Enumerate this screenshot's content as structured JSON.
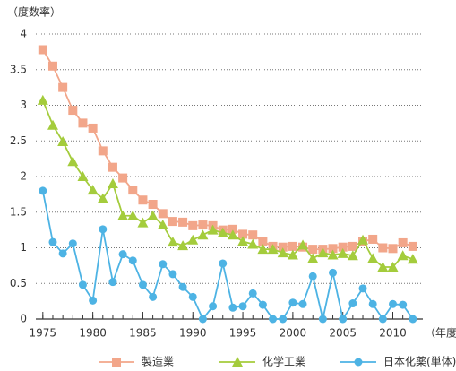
{
  "chart_data": {
    "type": "line",
    "y_label": "（度数率）",
    "x_label": "（年度）",
    "x": [
      1975,
      1976,
      1977,
      1978,
      1979,
      1980,
      1981,
      1982,
      1983,
      1984,
      1985,
      1986,
      1987,
      1988,
      1989,
      1990,
      1991,
      1992,
      1993,
      1994,
      1995,
      1996,
      1997,
      1998,
      1999,
      2000,
      2001,
      2002,
      2003,
      2004,
      2005,
      2006,
      2007,
      2008,
      2009,
      2010,
      2011,
      2012
    ],
    "xlim": [
      1974.3,
      2013
    ],
    "xticks": [
      1975,
      1980,
      1985,
      1990,
      1995,
      2000,
      2005,
      2010
    ],
    "ylim": [
      0,
      4
    ],
    "yticks": [
      0,
      0.5,
      1,
      1.5,
      2,
      2.5,
      3,
      3.5,
      4
    ],
    "grid": true,
    "series": [
      {
        "name": "製造業",
        "color": "#f2a68a",
        "marker": "square",
        "values": [
          3.78,
          3.55,
          3.25,
          2.93,
          2.75,
          2.68,
          2.36,
          2.13,
          1.98,
          1.81,
          1.67,
          1.61,
          1.48,
          1.37,
          1.36,
          1.31,
          1.32,
          1.31,
          1.25,
          1.26,
          1.19,
          1.18,
          1.09,
          1.02,
          1.01,
          1.02,
          1.01,
          0.98,
          0.98,
          0.99,
          1.01,
          1.02,
          1.09,
          1.12,
          1.0,
          0.99,
          1.07,
          1.02
        ]
      },
      {
        "name": "化学工業",
        "color": "#a4cc3c",
        "marker": "triangle",
        "values": [
          3.07,
          2.72,
          2.49,
          2.21,
          2.0,
          1.81,
          1.69,
          1.9,
          1.45,
          1.45,
          1.35,
          1.45,
          1.32,
          1.08,
          1.03,
          1.11,
          1.18,
          1.25,
          1.21,
          1.18,
          1.09,
          1.05,
          0.98,
          0.98,
          0.93,
          0.9,
          1.04,
          0.85,
          0.93,
          0.9,
          0.92,
          0.89,
          1.11,
          0.85,
          0.73,
          0.73,
          0.89,
          0.84
        ]
      },
      {
        "name": "日本化薬(単体)",
        "color": "#4db3e4",
        "marker": "circle",
        "values": [
          1.8,
          1.08,
          0.92,
          1.06,
          0.48,
          0.26,
          1.26,
          0.52,
          0.91,
          0.82,
          0.48,
          0.31,
          0.77,
          0.63,
          0.45,
          0.31,
          0,
          0.18,
          0.78,
          0.16,
          0.18,
          0.36,
          0.2,
          0,
          0,
          0.23,
          0.21,
          0.6,
          0,
          0.65,
          0,
          0.22,
          0.43,
          0.21,
          0,
          0.21,
          0.2,
          0
        ]
      }
    ]
  }
}
